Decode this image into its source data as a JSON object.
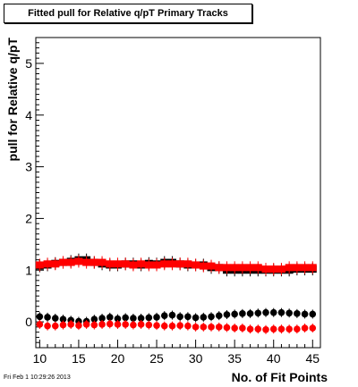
{
  "chart_data": {
    "type": "scatter",
    "title": "Fitted pull for Relative q/pT Primary Tracks",
    "xlabel": "No. of Fit Points",
    "ylabel": "pull for Relative q/pT",
    "xlim": [
      9.5,
      46
    ],
    "ylim": [
      -0.5,
      5.5
    ],
    "xticks": [
      10,
      15,
      20,
      25,
      30,
      35,
      40,
      45
    ],
    "yticks": [
      0,
      1,
      2,
      3,
      4,
      5
    ],
    "grid": false,
    "legend": "none",
    "series": [
      {
        "color": "#000000",
        "marker": "rect-errorbar",
        "x": [
          10,
          11,
          12,
          13,
          14,
          15,
          16,
          17,
          18,
          19,
          20,
          21,
          22,
          23,
          24,
          25,
          26,
          27,
          28,
          29,
          30,
          31,
          32,
          33,
          34,
          35,
          36,
          37,
          38,
          39,
          40,
          41,
          42,
          43,
          44,
          45
        ],
        "values": [
          1.08,
          1.1,
          1.13,
          1.15,
          1.17,
          1.2,
          1.2,
          1.15,
          1.12,
          1.1,
          1.1,
          1.12,
          1.12,
          1.1,
          1.13,
          1.12,
          1.15,
          1.15,
          1.12,
          1.1,
          1.1,
          1.1,
          1.05,
          1.05,
          1.0,
          1.0,
          1.0,
          1.0,
          1.0,
          1.0,
          1.0,
          1.0,
          1.0,
          1.02,
          1.02,
          1.02
        ]
      },
      {
        "color": "#ff0000",
        "marker": "rect-errorbar",
        "x": [
          10,
          11,
          12,
          13,
          14,
          15,
          16,
          17,
          18,
          19,
          20,
          21,
          22,
          23,
          24,
          25,
          26,
          27,
          28,
          29,
          30,
          31,
          32,
          33,
          34,
          35,
          36,
          37,
          38,
          39,
          40,
          41,
          42,
          43,
          44,
          45
        ],
        "values": [
          1.1,
          1.12,
          1.12,
          1.15,
          1.15,
          1.17,
          1.15,
          1.15,
          1.15,
          1.12,
          1.12,
          1.12,
          1.1,
          1.12,
          1.1,
          1.1,
          1.12,
          1.12,
          1.12,
          1.12,
          1.1,
          1.08,
          1.08,
          1.05,
          1.05,
          1.05,
          1.05,
          1.05,
          1.05,
          1.02,
          1.02,
          1.02,
          1.05,
          1.05,
          1.05,
          1.05
        ]
      },
      {
        "color": "#000000",
        "marker": "circle",
        "x": [
          10,
          11,
          12,
          13,
          14,
          15,
          16,
          17,
          18,
          19,
          20,
          21,
          22,
          23,
          24,
          25,
          26,
          27,
          28,
          29,
          30,
          31,
          32,
          33,
          34,
          35,
          36,
          37,
          38,
          39,
          40,
          41,
          42,
          43,
          44,
          45
        ],
        "values": [
          0.1,
          0.09,
          0.07,
          0.05,
          0.03,
          0.01,
          0.01,
          0.05,
          0.07,
          0.09,
          0.06,
          0.08,
          0.07,
          0.07,
          0.08,
          0.09,
          0.12,
          0.13,
          0.1,
          0.1,
          0.08,
          0.09,
          0.1,
          0.12,
          0.14,
          0.15,
          0.16,
          0.16,
          0.17,
          0.18,
          0.18,
          0.18,
          0.17,
          0.16,
          0.15,
          0.15
        ]
      },
      {
        "color": "#ff0000",
        "marker": "circle",
        "x": [
          10,
          11,
          12,
          13,
          14,
          15,
          16,
          17,
          18,
          19,
          20,
          21,
          22,
          23,
          24,
          25,
          26,
          27,
          28,
          29,
          30,
          31,
          32,
          33,
          34,
          35,
          36,
          37,
          38,
          39,
          40,
          41,
          42,
          43,
          44,
          45
        ],
        "values": [
          -0.05,
          -0.08,
          -0.08,
          -0.06,
          -0.05,
          -0.07,
          -0.05,
          -0.06,
          -0.05,
          -0.04,
          -0.05,
          -0.05,
          -0.06,
          -0.05,
          -0.06,
          -0.07,
          -0.08,
          -0.08,
          -0.07,
          -0.08,
          -0.1,
          -0.1,
          -0.1,
          -0.1,
          -0.11,
          -0.12,
          -0.12,
          -0.14,
          -0.14,
          -0.15,
          -0.14,
          -0.14,
          -0.14,
          -0.14,
          -0.12,
          -0.12
        ]
      }
    ]
  },
  "footer": {
    "timestamp": "Fri Feb  1 10:29:26 2013"
  }
}
